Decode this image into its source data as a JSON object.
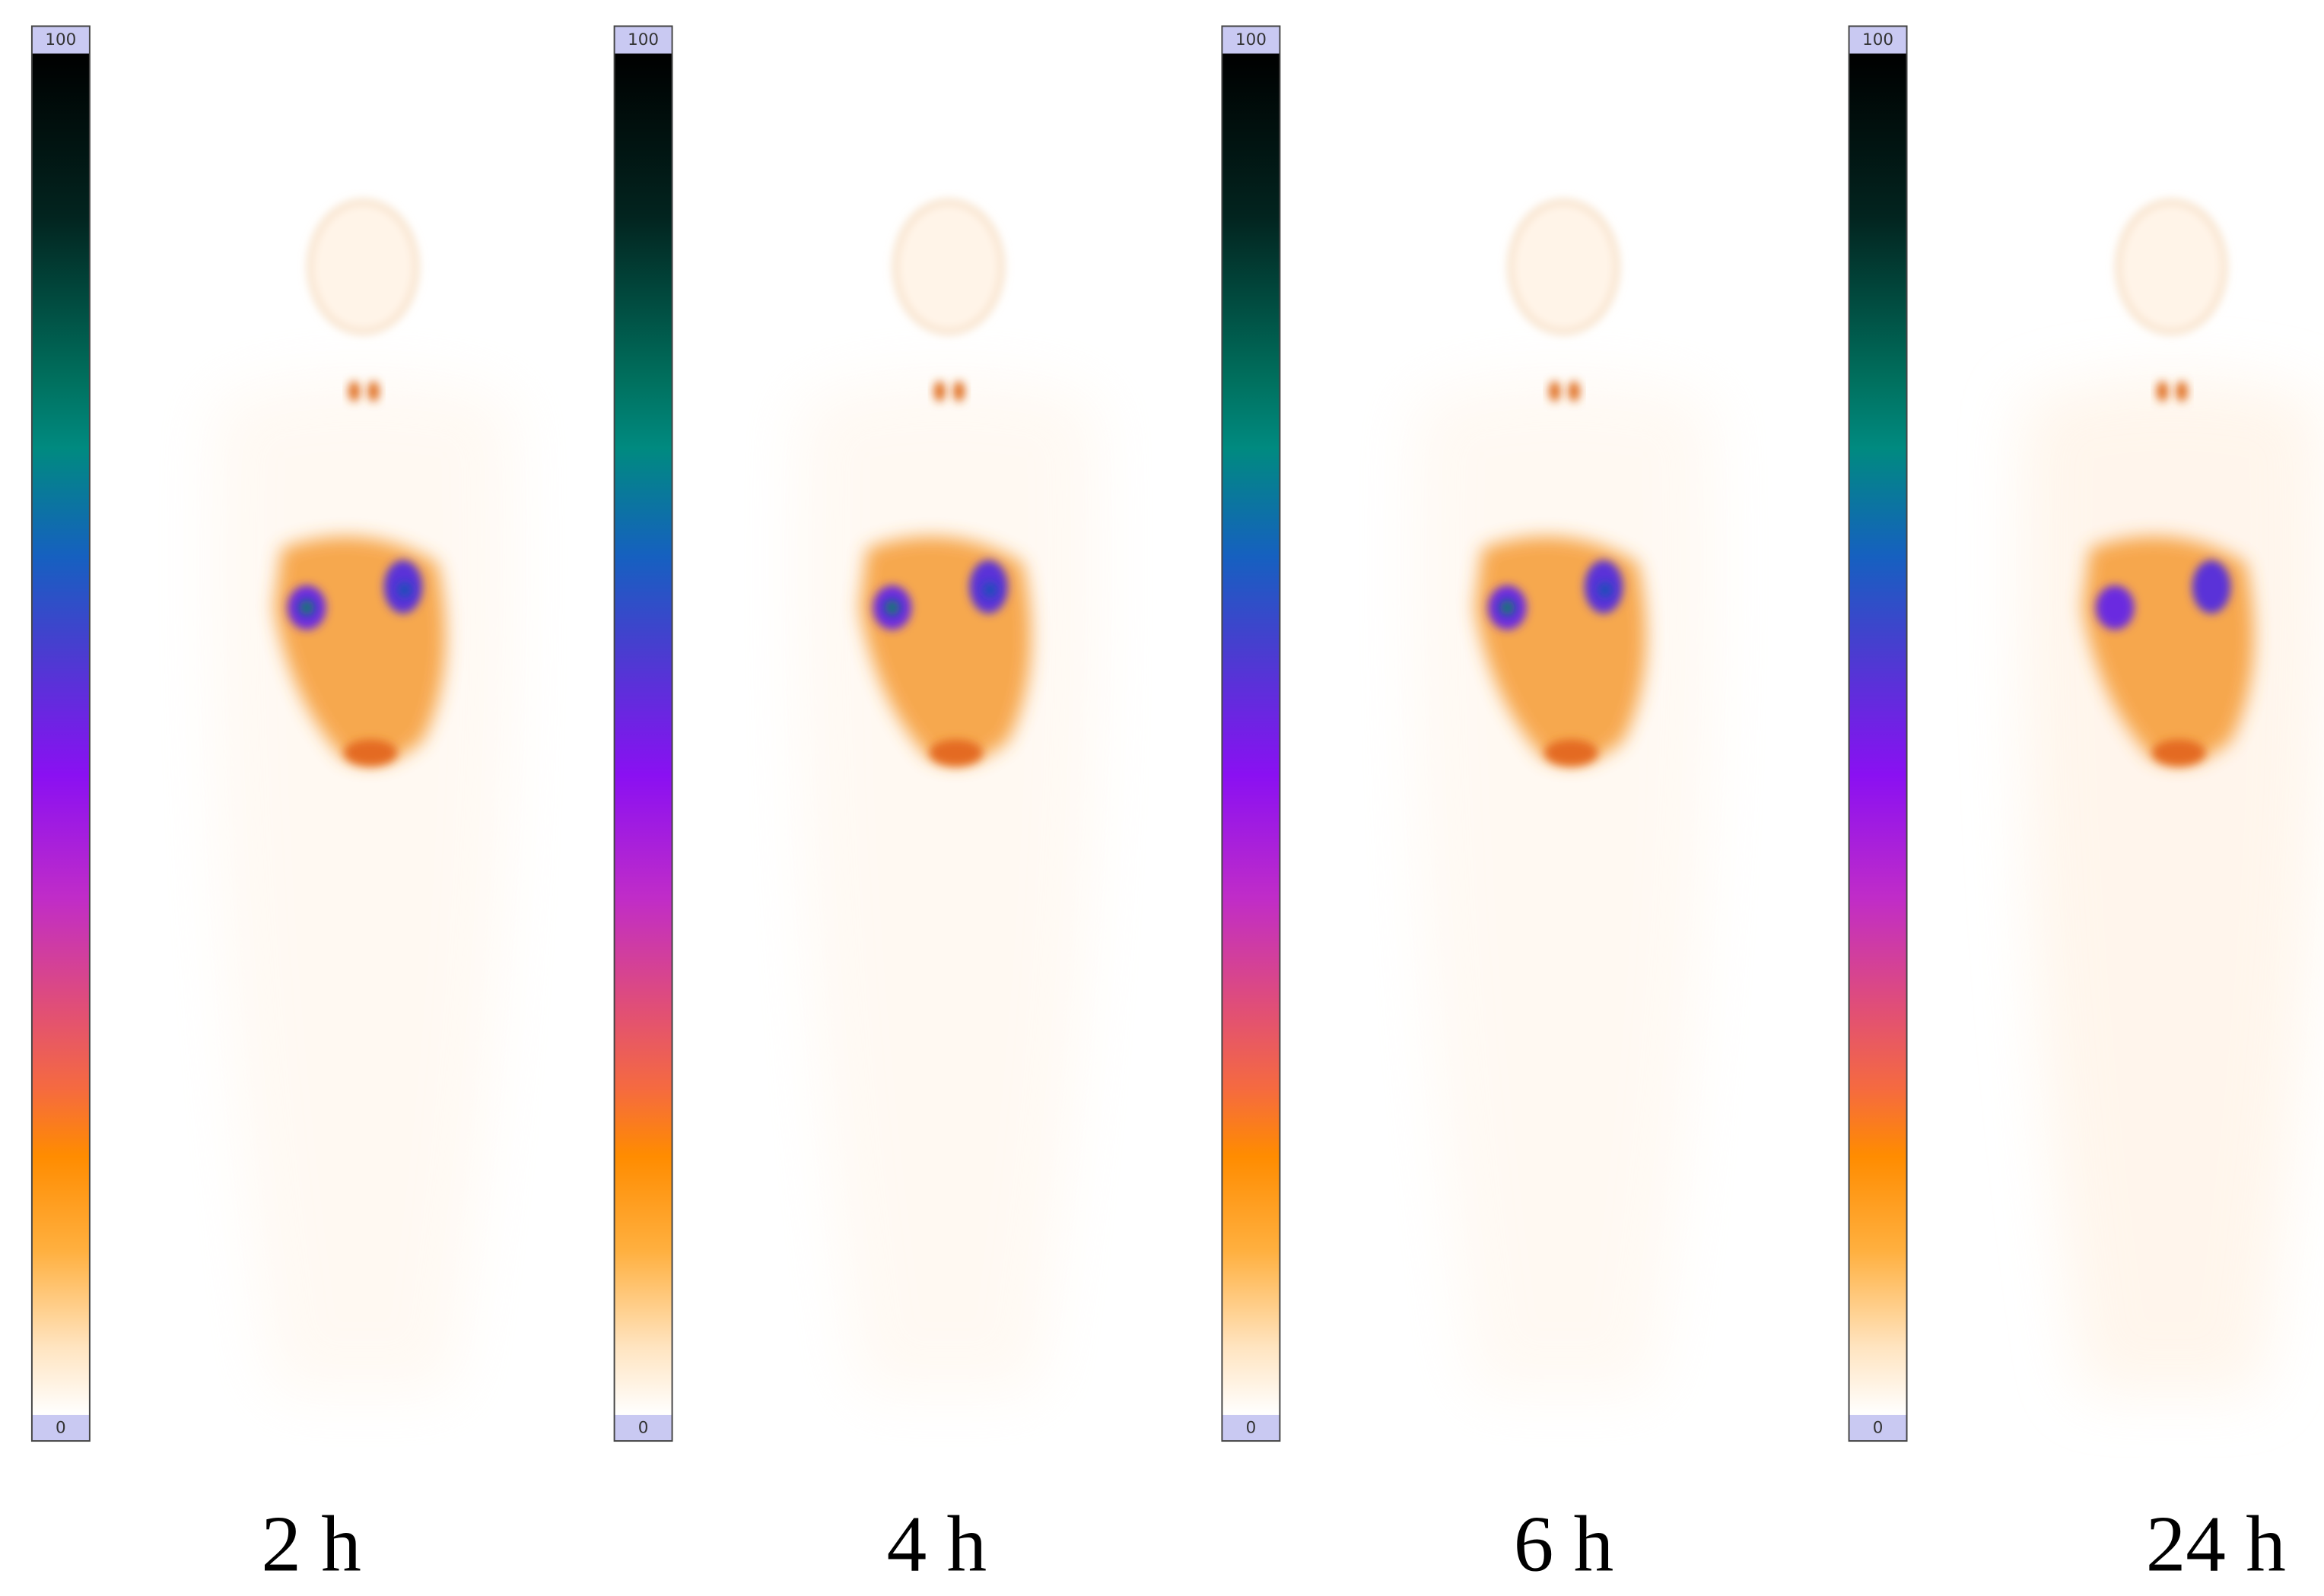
{
  "panels": [
    {
      "label": "2 h",
      "scale_max": 100,
      "scale_min": 0
    },
    {
      "label": "4 h",
      "scale_max": 100,
      "scale_min": 0
    },
    {
      "label": "6 h",
      "scale_max": 100,
      "scale_min": 0
    },
    {
      "label": "24 h",
      "scale_max": 100,
      "scale_min": 0
    }
  ]
}
